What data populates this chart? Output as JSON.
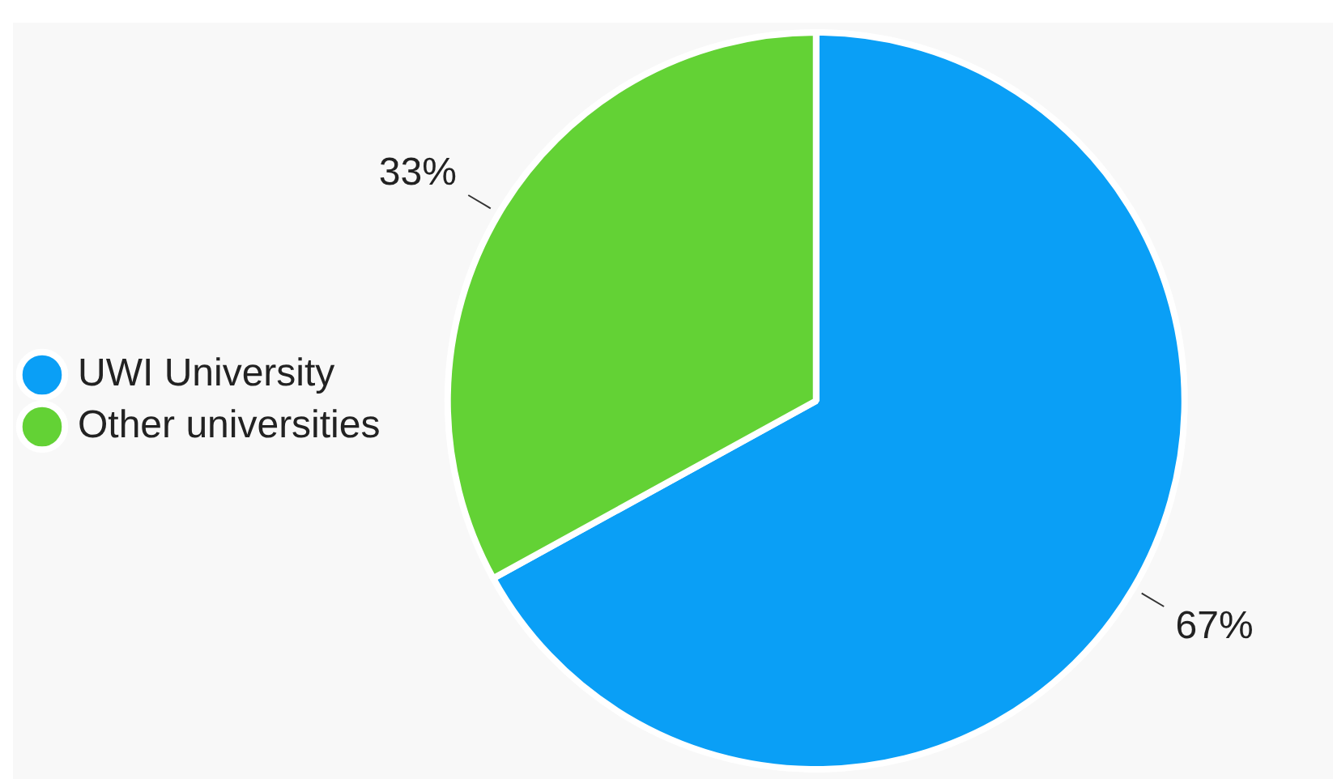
{
  "chart_data": {
    "type": "pie",
    "categories": [
      "UWI University",
      "Other universities"
    ],
    "values": [
      67,
      33
    ],
    "colors": [
      "#0a9ff6",
      "#63d235"
    ],
    "value_labels": [
      "67%",
      "33%"
    ],
    "legend": "left"
  }
}
